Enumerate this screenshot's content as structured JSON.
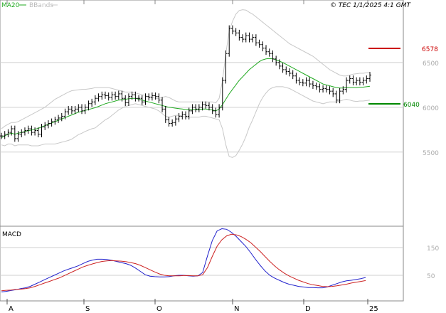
{
  "header": {
    "ma_label": "MA20",
    "bb_label": "BBands",
    "copyright": "© TEC 1/1/2025 4:1 GMT"
  },
  "macd_panel": {
    "label": "MACD"
  },
  "colors": {
    "ma": "#22aa22",
    "bbands": "#c8c8c8",
    "resistance": "#cc0000",
    "support": "#008800",
    "macd_line": "#2222cc",
    "signal_line": "#cc2222",
    "grid": "#cfcfcf",
    "bars": "#000000"
  },
  "chart_data": [
    {
      "type": "ohlc",
      "title": "",
      "x_labels": [
        "A",
        "S",
        "O",
        "N",
        "D",
        "25"
      ],
      "y_ticks": [
        5500,
        6000,
        6500
      ],
      "y_tick_labels": [
        "5500",
        "6000",
        "6500"
      ],
      "ylim": [
        5000,
        7000
      ],
      "grid": true,
      "levels": [
        {
          "name": "resistance",
          "value": 6578,
          "label": "6578"
        },
        {
          "name": "support",
          "value": 6040,
          "label": "6040"
        }
      ],
      "closes": [
        5680,
        5700,
        5720,
        5760,
        5650,
        5700,
        5720,
        5740,
        5760,
        5720,
        5740,
        5700,
        5780,
        5800,
        5820,
        5840,
        5860,
        5880,
        5900,
        5950,
        5980,
        5960,
        5980,
        6000,
        5960,
        6000,
        6040,
        6060,
        6100,
        6120,
        6140,
        6130,
        6110,
        6140,
        6120,
        6150,
        6100,
        6050,
        6120,
        6140,
        6100,
        6100,
        6060,
        6120,
        6110,
        6130,
        6120,
        6080,
        5980,
        5860,
        5820,
        5830,
        5870,
        5900,
        5920,
        5900,
        5960,
        6000,
        5980,
        6000,
        6030,
        6020,
        6000,
        5960,
        5920,
        6000,
        6300,
        6600,
        6880,
        6850,
        6830,
        6780,
        6760,
        6800,
        6760,
        6780,
        6720,
        6700,
        6660,
        6620,
        6600,
        6540,
        6500,
        6460,
        6420,
        6400,
        6380,
        6350,
        6300,
        6280,
        6270,
        6300,
        6260,
        6240,
        6230,
        6200,
        6210,
        6200,
        6180,
        6150,
        6080,
        6180,
        6200,
        6300,
        6320,
        6280,
        6300,
        6280,
        6300,
        6320,
        6360
      ],
      "ma20": [
        5660,
        5680,
        5700,
        5710,
        5700,
        5710,
        5720,
        5730,
        5740,
        5745,
        5755,
        5765,
        5780,
        5795,
        5810,
        5825,
        5840,
        5855,
        5870,
        5885,
        5900,
        5915,
        5930,
        5945,
        5955,
        5965,
        5975,
        5985,
        5995,
        6010,
        6025,
        6040,
        6050,
        6060,
        6070,
        6080,
        6085,
        6090,
        6095,
        6100,
        6100,
        6090,
        6080,
        6070,
        6060,
        6050,
        6040,
        6030,
        6020,
        6010,
        6000,
        5995,
        5990,
        5985,
        5980,
        5975,
        5975,
        5975,
        5975,
        5975,
        5980,
        5980,
        5975,
        5970,
        5960,
        5980,
        6030,
        6090,
        6150,
        6200,
        6250,
        6300,
        6340,
        6380,
        6420,
        6450,
        6480,
        6510,
        6530,
        6540,
        6545,
        6540,
        6530,
        6515,
        6500,
        6480,
        6460,
        6440,
        6420,
        6400,
        6380,
        6360,
        6340,
        6320,
        6300,
        6280,
        6260,
        6250,
        6240,
        6230,
        6220,
        6215,
        6215,
        6220,
        6220,
        6220,
        6220,
        6225,
        6225,
        6230,
        6235
      ],
      "bb_upper": [
        5760,
        5790,
        5810,
        5830,
        5830,
        5840,
        5860,
        5880,
        5900,
        5920,
        5940,
        5960,
        5980,
        6000,
        6030,
        6060,
        6090,
        6110,
        6130,
        6150,
        6170,
        6185,
        6190,
        6195,
        6200,
        6200,
        6205,
        6210,
        6220,
        6220,
        6220,
        6220,
        6220,
        6210,
        6200,
        6190,
        6180,
        6170,
        6170,
        6170,
        6160,
        6150,
        6140,
        6130,
        6120,
        6110,
        6100,
        6100,
        6110,
        6120,
        6110,
        6090,
        6070,
        6060,
        6060,
        6060,
        6060,
        6060,
        6060,
        6060,
        6060,
        6060,
        6060,
        6060,
        6050,
        6100,
        6300,
        6600,
        6850,
        6960,
        7040,
        7080,
        7090,
        7085,
        7060,
        7040,
        7010,
        6980,
        6950,
        6920,
        6890,
        6860,
        6830,
        6800,
        6770,
        6740,
        6710,
        6690,
        6670,
        6650,
        6630,
        6610,
        6590,
        6570,
        6540,
        6510,
        6480,
        6450,
        6420,
        6400,
        6380,
        6360,
        6350,
        6350,
        6360,
        6370,
        6375,
        6380,
        6380,
        6385,
        6390
      ],
      "bb_lower": [
        5580,
        5570,
        5590,
        5590,
        5570,
        5580,
        5580,
        5580,
        5580,
        5570,
        5570,
        5570,
        5580,
        5590,
        5590,
        5590,
        5590,
        5600,
        5610,
        5620,
        5630,
        5645,
        5670,
        5695,
        5710,
        5730,
        5745,
        5760,
        5770,
        5800,
        5830,
        5860,
        5880,
        5910,
        5940,
        5970,
        5990,
        6010,
        6020,
        6030,
        6040,
        6030,
        6020,
        6010,
        6000,
        5990,
        5980,
        5960,
        5930,
        5900,
        5890,
        5900,
        5910,
        5910,
        5900,
        5890,
        5890,
        5890,
        5890,
        5890,
        5900,
        5900,
        5890,
        5880,
        5870,
        5860,
        5760,
        5580,
        5450,
        5440,
        5460,
        5520,
        5590,
        5675,
        5780,
        5860,
        5950,
        6040,
        6110,
        6160,
        6200,
        6220,
        6230,
        6230,
        6230,
        6220,
        6210,
        6190,
        6170,
        6150,
        6130,
        6110,
        6090,
        6070,
        6060,
        6050,
        6040,
        6050,
        6060,
        6060,
        6060,
        6070,
        6080,
        6090,
        6080,
        6070,
        6065,
        6070,
        6070,
        6075,
        6080
      ]
    },
    {
      "type": "line",
      "title": "MACD",
      "x_labels": [
        "A",
        "S",
        "O",
        "N",
        "D",
        "25"
      ],
      "y_ticks": [
        50,
        150
      ],
      "y_tick_labels": [
        "50",
        "150"
      ],
      "ylim": [
        -20,
        220
      ],
      "series": [
        {
          "name": "MACD",
          "values": [
            -10,
            -8,
            -5,
            -2,
            2,
            5,
            10,
            18,
            26,
            34,
            42,
            50,
            58,
            66,
            72,
            78,
            84,
            92,
            100,
            105,
            108,
            108,
            107,
            104,
            100,
            96,
            92,
            86,
            76,
            64,
            52,
            47,
            45,
            44,
            44,
            45,
            48,
            50,
            50,
            48,
            47,
            48,
            60,
            120,
            175,
            210,
            218,
            216,
            205,
            190,
            172,
            154,
            132,
            108,
            86,
            66,
            50,
            40,
            32,
            24,
            18,
            14,
            10,
            8,
            6,
            6,
            5,
            5,
            8,
            14,
            20,
            26,
            30,
            32,
            35,
            38,
            42
          ]
        },
        {
          "name": "Signal",
          "values": [
            -6,
            -4,
            -3,
            -1,
            0,
            2,
            5,
            10,
            16,
            22,
            28,
            34,
            40,
            48,
            56,
            64,
            72,
            80,
            86,
            91,
            96,
            100,
            102,
            103,
            102,
            101,
            99,
            96,
            92,
            86,
            78,
            70,
            62,
            55,
            50,
            48,
            48,
            48,
            49,
            49,
            48,
            48,
            52,
            78,
            118,
            155,
            178,
            192,
            198,
            196,
            190,
            180,
            168,
            152,
            136,
            118,
            100,
            84,
            70,
            58,
            48,
            40,
            32,
            26,
            20,
            16,
            13,
            10,
            9,
            10,
            12,
            15,
            18,
            22,
            25,
            28,
            31
          ]
        }
      ]
    }
  ]
}
